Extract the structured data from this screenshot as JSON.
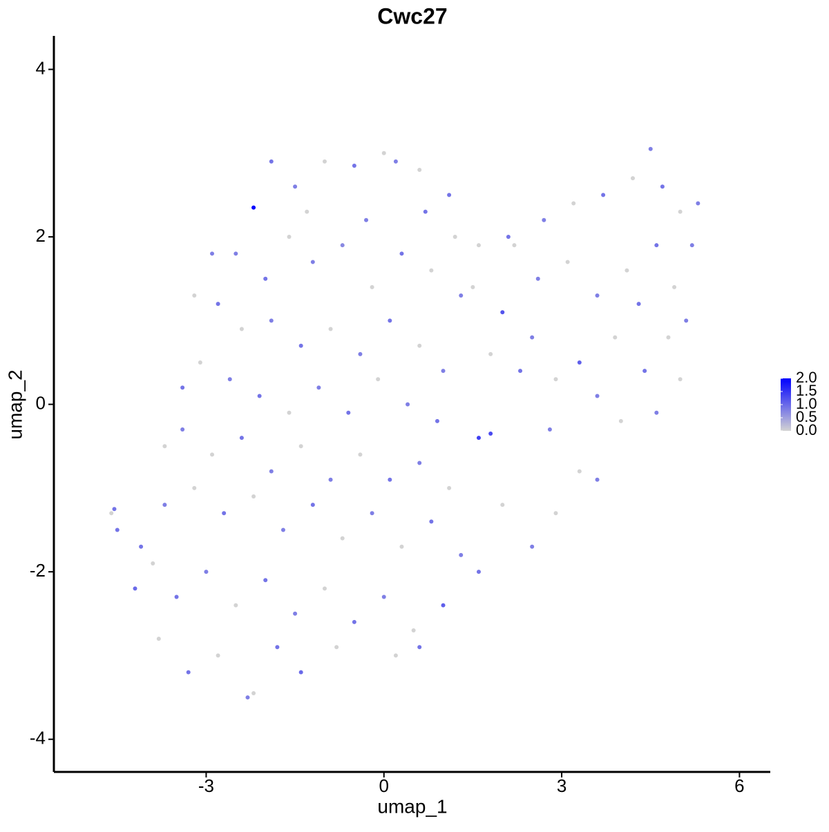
{
  "chart_data": {
    "type": "scatter",
    "title": "Cwc27",
    "x_label": "umap_1",
    "y_label": "umap_2",
    "xlim": [
      -5.57,
      6.52
    ],
    "xticks": [
      -3,
      0,
      3,
      6
    ],
    "ylim": [
      -4.39,
      4.4
    ],
    "yticks": [
      -4,
      -2,
      0,
      2,
      4
    ],
    "grid": false,
    "low_color": "#d3d3d3",
    "high_color": "#0000ff",
    "colorlim": [
      0,
      2
    ],
    "colorticks": [
      {
        "value": 0,
        "label": "0.0"
      },
      {
        "value": 0.5,
        "label": "0.5"
      },
      {
        "value": 1,
        "label": "1.0"
      },
      {
        "value": 1.5,
        "label": "1.5"
      },
      {
        "value": 2,
        "label": "2.0"
      }
    ],
    "x": [
      -2.2,
      -1.9,
      -1.5,
      -1.0,
      -0.5,
      0,
      0.2,
      0.6,
      1.1,
      -2.5,
      -2.0,
      -1.6,
      -1.2,
      -0.7,
      -0.2,
      0.3,
      0.8,
      1.3,
      -2.8,
      -2.4,
      -1.9,
      -1.4,
      -0.9,
      -0.4,
      0.1,
      0.6,
      1.0,
      -3.1,
      -2.6,
      -2.1,
      -1.6,
      -1.1,
      -0.6,
      -0.1,
      0.4,
      0.9,
      -3.4,
      -2.9,
      -2.4,
      -1.9,
      -1.4,
      -0.9,
      -0.4,
      0.1,
      0.6,
      1.1,
      1.6,
      1.8,
      -3.7,
      -3.2,
      -2.7,
      -2.2,
      -1.7,
      -1.2,
      -0.7,
      -0.2,
      0.3,
      0.8,
      1.3,
      -4.6,
      -4.55,
      -4.5,
      -4.2,
      -3.9,
      -3.5,
      -3.0,
      -2.5,
      -2.0,
      -1.5,
      -1.0,
      -0.5,
      0,
      0.5,
      1.0,
      -3.8,
      -3.3,
      -2.8,
      -2.3,
      -2.2,
      -1.8,
      -1.4,
      -0.8,
      0.2,
      0.6,
      1.5,
      2.0,
      2.5,
      2.9,
      3.3,
      3.6,
      4.0,
      4.4,
      4.8,
      5.1,
      2.2,
      2.7,
      3.2,
      3.7,
      4.2,
      4.5,
      4.7,
      5.0,
      5.3,
      2.6,
      3.1,
      3.6,
      4.1,
      4.6,
      4.9,
      1.8,
      2.3,
      2.8,
      3.3,
      3.6,
      2.9,
      2.5,
      2.0,
      1.6,
      4.6,
      5.0,
      5.2,
      4.3,
      3.9,
      2.1,
      1.6,
      -2.9,
      -3.2,
      -3.4,
      -3.7,
      -4.1,
      -0.3,
      -1.3,
      0.7,
      1.2
    ],
    "y": [
      2.35,
      2.9,
      2.6,
      2.9,
      2.85,
      3.0,
      2.9,
      2.8,
      2.5,
      1.8,
      1.5,
      2.0,
      1.7,
      1.9,
      1.4,
      1.8,
      1.6,
      1.3,
      1.2,
      0.9,
      1.0,
      0.7,
      0.9,
      0.6,
      1.0,
      0.7,
      0.4,
      0.5,
      0.3,
      0.1,
      -0.1,
      0.2,
      -0.1,
      0.3,
      0.0,
      -0.2,
      -0.3,
      -0.6,
      -0.4,
      -0.8,
      -0.5,
      -0.9,
      -0.6,
      -0.9,
      -0.7,
      -1.0,
      -0.4,
      -0.35,
      -1.2,
      -1.0,
      -1.3,
      -1.1,
      -1.5,
      -1.2,
      -1.6,
      -1.3,
      -1.7,
      -1.4,
      -1.8,
      -1.3,
      -1.25,
      -1.5,
      -2.2,
      -1.9,
      -2.3,
      -2.0,
      -2.4,
      -2.1,
      -2.5,
      -2.2,
      -2.6,
      -2.3,
      -2.7,
      -2.4,
      -2.8,
      -3.2,
      -3.0,
      -3.5,
      -3.45,
      -2.9,
      -3.2,
      -2.9,
      -3.0,
      -2.9,
      1.4,
      1.1,
      0.8,
      0.3,
      0.5,
      0.1,
      -0.2,
      0.4,
      0.8,
      1.0,
      1.9,
      2.2,
      2.4,
      2.5,
      2.7,
      3.05,
      2.6,
      2.3,
      2.4,
      1.5,
      1.7,
      1.3,
      1.6,
      1.9,
      1.4,
      0.6,
      0.4,
      -0.3,
      -0.8,
      -0.9,
      -1.3,
      -1.7,
      -1.2,
      -2.0,
      -0.1,
      0.3,
      1.9,
      1.2,
      0.8,
      2.0,
      1.9,
      1.8,
      1.3,
      0.2,
      -0.5,
      -1.7,
      2.2,
      2.3,
      2.3,
      2.0
    ],
    "values": [
      2.0,
      0.9,
      0.8,
      0,
      0.9,
      0,
      0.8,
      0,
      0.9,
      0.8,
      0.9,
      0,
      0.8,
      0.7,
      0,
      0.9,
      0,
      0.8,
      0.9,
      0,
      0.8,
      0.9,
      0,
      0.8,
      0.9,
      0,
      0.8,
      0,
      0.8,
      0.9,
      0,
      0.8,
      0.9,
      0,
      0.8,
      0.9,
      0.8,
      0,
      0.9,
      0.8,
      0,
      0.8,
      0,
      0.9,
      0.8,
      0,
      1.4,
      1.3,
      0.8,
      0,
      0.9,
      0,
      0.8,
      0.9,
      0,
      0.8,
      0,
      0.9,
      0.8,
      0,
      0.9,
      0.9,
      1.0,
      0,
      0.9,
      0.8,
      0,
      0.9,
      0.8,
      0,
      0.9,
      0.8,
      0,
      1.1,
      0,
      0.9,
      0,
      0.8,
      0,
      0.9,
      1.0,
      0,
      0,
      0.9,
      0,
      1.2,
      0.8,
      0,
      1.1,
      0.8,
      0,
      0.9,
      0,
      0.8,
      0,
      0.8,
      0,
      0.9,
      0,
      0.8,
      0.9,
      0,
      0.8,
      0.8,
      0,
      0.8,
      0,
      0.9,
      0,
      0,
      0.9,
      0.8,
      0,
      0.8,
      0,
      0.8,
      0,
      0.9,
      0.8,
      0,
      0.8,
      0.9,
      0,
      0.9,
      0,
      0.8,
      0,
      0.9,
      0,
      0.9,
      0.8,
      0,
      0.9,
      0
    ]
  }
}
